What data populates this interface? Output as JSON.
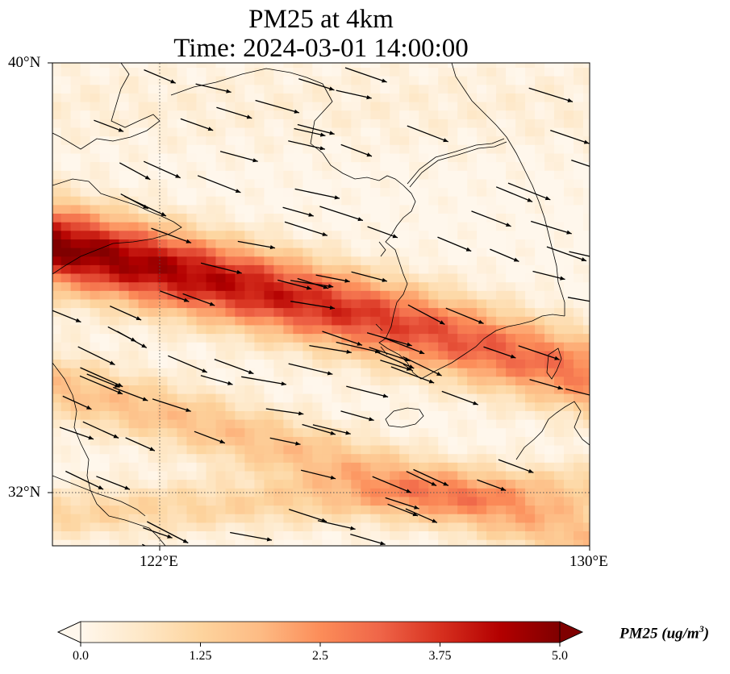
{
  "title": {
    "line1": "PM25 at 4km",
    "line2": "Time: 2024-03-01 14:00:00"
  },
  "map": {
    "lon_range": [
      120,
      130
    ],
    "lat_range": [
      31,
      40
    ],
    "lat_ticks": [
      {
        "value": 40,
        "label": "40°N"
      },
      {
        "value": 32,
        "label": "32°N"
      }
    ],
    "lon_ticks": [
      {
        "value": 122,
        "label": "122°E"
      },
      {
        "value": 130,
        "label": "130°E"
      }
    ],
    "gridlines": {
      "lon": [
        122
      ],
      "lat": [
        32
      ],
      "style": "dotted"
    },
    "plume": {
      "description_axis": "west-northwest to east-southeast band",
      "peak_value": 5.0,
      "peak_location": [
        120.5,
        36.6
      ]
    }
  },
  "wind": {
    "direction": "toward east-southeast",
    "vector_count": 110
  },
  "colorbar": {
    "colormap": "OrRd",
    "vmin": 0.0,
    "vmax": 5.0,
    "extend": "both",
    "ticks": [
      {
        "value": 0.0,
        "label": "0.0"
      },
      {
        "value": 1.25,
        "label": "1.25"
      },
      {
        "value": 2.5,
        "label": "2.5"
      },
      {
        "value": 3.75,
        "label": "3.75"
      },
      {
        "value": 5.0,
        "label": "5.0"
      }
    ],
    "label_main": "PM25 (ug/m",
    "label_sup": "3",
    "label_end": ")",
    "colors": [
      "#fff7ec",
      "#fee8c8",
      "#fdd49e",
      "#fdbb84",
      "#fc8d59",
      "#ef6548",
      "#d7301f",
      "#b30000",
      "#7f0000"
    ]
  }
}
